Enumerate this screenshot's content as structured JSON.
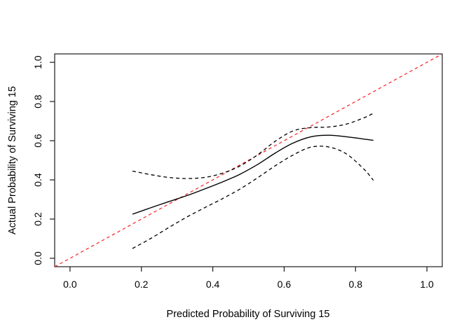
{
  "figure": {
    "background": "#ffffff",
    "box_color": "#1a1a1a",
    "tick_color": "#1a1a1a"
  },
  "chart_data": {
    "type": "line",
    "title": "",
    "xlabel": "Predicted Probability of Surviving 15",
    "ylabel": "Actual Probability of Surviving 15",
    "xlim": [
      -0.043,
      1.043
    ],
    "ylim": [
      -0.043,
      1.043
    ],
    "xticks": [
      0.0,
      0.2,
      0.4,
      0.6,
      0.8,
      1.0
    ],
    "yticks": [
      0.0,
      0.2,
      0.4,
      0.6,
      0.8,
      1.0
    ],
    "xtick_labels": [
      "0.0",
      "0.2",
      "0.4",
      "0.6",
      "0.8",
      "1.0"
    ],
    "ytick_labels": [
      "0.0",
      "0.2",
      "0.4",
      "0.6",
      "0.8",
      "1.0"
    ],
    "grid": false,
    "legend": null,
    "series": [
      {
        "name": "ideal-line",
        "color": "#fa2020",
        "width": 1.2,
        "dash": "4.5,4",
        "smooth": false,
        "x": [
          -0.043,
          1.043
        ],
        "y": [
          -0.043,
          1.043
        ]
      },
      {
        "name": "calibration-curve",
        "color": "#000000",
        "width": 1.4,
        "dash": null,
        "smooth": true,
        "x": [
          0.175,
          0.225,
          0.275,
          0.325,
          0.375,
          0.425,
          0.475,
          0.525,
          0.575,
          0.625,
          0.675,
          0.725,
          0.775,
          0.825,
          0.85
        ],
        "y": [
          0.225,
          0.257,
          0.288,
          0.318,
          0.352,
          0.388,
          0.428,
          0.478,
          0.537,
          0.588,
          0.62,
          0.628,
          0.62,
          0.608,
          0.602
        ]
      },
      {
        "name": "upper-confidence-band",
        "color": "#000000",
        "width": 1.3,
        "dash": "5,4",
        "smooth": true,
        "x": [
          0.175,
          0.225,
          0.275,
          0.325,
          0.375,
          0.425,
          0.475,
          0.525,
          0.575,
          0.625,
          0.675,
          0.725,
          0.775,
          0.825,
          0.85
        ],
        "y": [
          0.445,
          0.427,
          0.413,
          0.407,
          0.412,
          0.433,
          0.47,
          0.527,
          0.597,
          0.65,
          0.667,
          0.67,
          0.685,
          0.718,
          0.74
        ]
      },
      {
        "name": "lower-confidence-band",
        "color": "#000000",
        "width": 1.3,
        "dash": "5,4",
        "smooth": true,
        "x": [
          0.175,
          0.225,
          0.275,
          0.325,
          0.375,
          0.425,
          0.475,
          0.525,
          0.575,
          0.625,
          0.675,
          0.725,
          0.775,
          0.825,
          0.85
        ],
        "y": [
          0.05,
          0.1,
          0.155,
          0.208,
          0.256,
          0.302,
          0.352,
          0.41,
          0.472,
          0.527,
          0.567,
          0.568,
          0.532,
          0.452,
          0.398
        ]
      }
    ]
  }
}
